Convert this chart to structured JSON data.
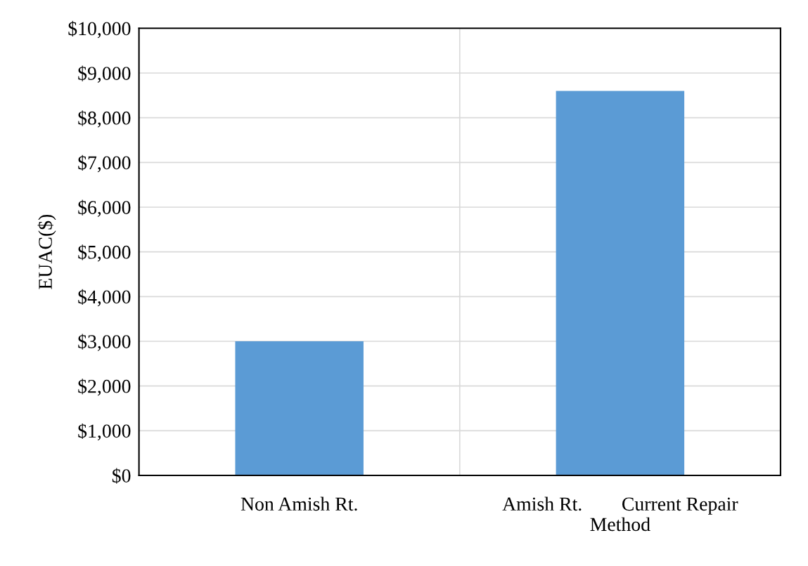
{
  "chart_data": {
    "type": "bar",
    "ylabel": "EUAC($)",
    "categories": [
      "Non Amish Rt.",
      "Amish Rt.        Current Repair\nMethod"
    ],
    "values": [
      3000,
      8600
    ],
    "color": "#5b9bd5",
    "ylim": [
      0,
      10000
    ],
    "yticks": [
      {
        "value": 0,
        "label": "$0"
      },
      {
        "value": 1000,
        "label": "$1,000"
      },
      {
        "value": 2000,
        "label": "$2,000"
      },
      {
        "value": 3000,
        "label": "$3,000"
      },
      {
        "value": 4000,
        "label": "$4,000"
      },
      {
        "value": 5000,
        "label": "$5,000"
      },
      {
        "value": 6000,
        "label": "$6,000"
      },
      {
        "value": 7000,
        "label": "$7,000"
      },
      {
        "value": 8000,
        "label": "$8,000"
      },
      {
        "value": 9000,
        "label": "$9,000"
      },
      {
        "value": 10000,
        "label": "$10,000"
      }
    ],
    "grid": true
  }
}
